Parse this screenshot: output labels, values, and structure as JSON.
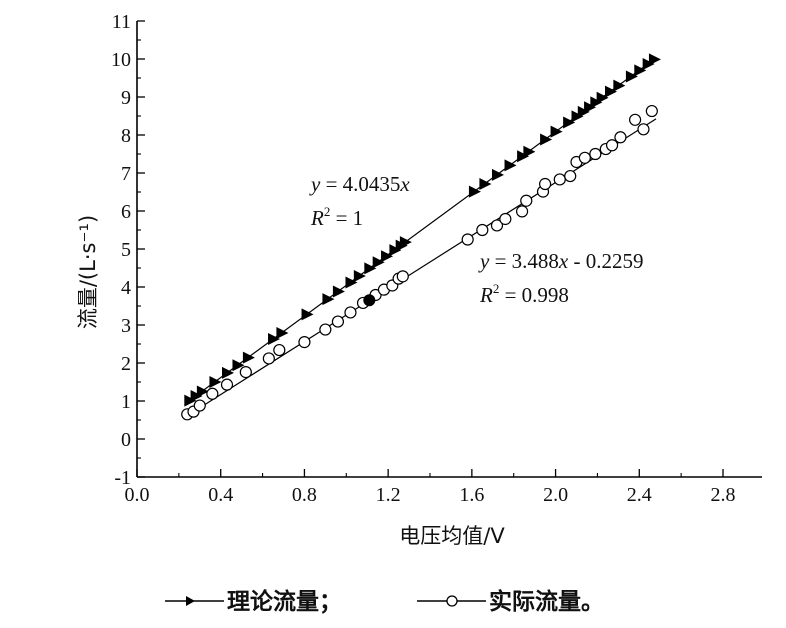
{
  "chart_data": {
    "type": "scatter",
    "xlabel": "电压均值/V",
    "ylabel": "流量/(L·s⁻¹)",
    "xlim": [
      0.0,
      3.0
    ],
    "ylim": [
      -1,
      11
    ],
    "x_ticks": [
      0.0,
      0.4,
      0.8,
      1.2,
      1.6,
      2.0,
      2.4,
      2.8
    ],
    "x_tick_labels": [
      "0.0",
      "0.4",
      "0.8",
      "1.2",
      "1.6",
      "2.0",
      "2.4",
      "2.8"
    ],
    "y_ticks": [
      -1,
      0,
      1,
      2,
      3,
      4,
      5,
      6,
      7,
      8,
      9,
      10,
      11
    ],
    "y_tick_labels": [
      "-1",
      "0",
      "1",
      "2",
      "3",
      "4",
      "5",
      "6",
      "7",
      "8",
      "9",
      "10",
      "11"
    ],
    "grid": false,
    "legend_text": "理论流量；",
    "legend_text_2": "实际流量。",
    "series": [
      {
        "name": "理论流量",
        "marker": "filled-triangle-right",
        "color": "#000000",
        "fit": {
          "slope": 4.0435,
          "intercept": 0,
          "x_range": [
            0.24,
            2.48
          ]
        },
        "equation": {
          "y_prefix": "y",
          "y_rest": " = 4.0435",
          "x_var": "x",
          "r2_prefix": "R",
          "r2_rest": " = 1"
        },
        "x": [
          0.25,
          0.28,
          0.31,
          0.37,
          0.43,
          0.48,
          0.53,
          0.65,
          0.69,
          0.81,
          0.91,
          0.96,
          1.02,
          1.06,
          1.11,
          1.15,
          1.19,
          1.23,
          1.26,
          1.28,
          1.61,
          1.66,
          1.72,
          1.78,
          1.84,
          1.87,
          1.95,
          2.0,
          2.06,
          2.1,
          2.13,
          2.16,
          2.19,
          2.22,
          2.26,
          2.3,
          2.36,
          2.4,
          2.44,
          2.47
        ],
        "y": [
          1.01,
          1.13,
          1.25,
          1.5,
          1.74,
          1.94,
          2.14,
          2.63,
          2.79,
          3.28,
          3.68,
          3.88,
          4.12,
          4.29,
          4.49,
          4.65,
          4.81,
          4.97,
          5.09,
          5.18,
          6.51,
          6.71,
          6.95,
          7.2,
          7.44,
          7.56,
          7.88,
          8.09,
          8.33,
          8.49,
          8.61,
          8.73,
          8.86,
          8.98,
          9.14,
          9.3,
          9.54,
          9.7,
          9.87,
          9.99
        ]
      },
      {
        "name": "实际流量",
        "marker": "open-circle",
        "color": "#000000",
        "fit": {
          "slope": 3.488,
          "intercept": -0.2259,
          "x_range": [
            0.24,
            2.48
          ]
        },
        "equation": {
          "y_prefix": "y",
          "y_rest": " = 3.488",
          "x_var": "x",
          "x_rest": " - 0.2259",
          "r2_prefix": "R",
          "r2_rest": " = 0.998"
        },
        "x": [
          0.24,
          0.27,
          0.3,
          0.36,
          0.43,
          0.52,
          0.63,
          0.68,
          0.8,
          0.9,
          0.96,
          1.02,
          1.08,
          1.14,
          1.18,
          1.22,
          1.25,
          1.27,
          1.58,
          1.65,
          1.72,
          1.76,
          1.84,
          1.86,
          1.94,
          1.95,
          2.02,
          2.07,
          2.1,
          2.14,
          2.19,
          2.24,
          2.27,
          2.31,
          2.38,
          2.42,
          2.46
        ],
        "y": [
          0.65,
          0.72,
          0.88,
          1.19,
          1.43,
          1.76,
          2.12,
          2.34,
          2.55,
          2.88,
          3.09,
          3.33,
          3.58,
          3.79,
          3.93,
          4.04,
          4.22,
          4.28,
          5.25,
          5.5,
          5.62,
          5.79,
          5.99,
          6.27,
          6.51,
          6.71,
          6.83,
          6.92,
          7.29,
          7.4,
          7.5,
          7.63,
          7.73,
          7.94,
          8.4,
          8.15,
          8.63
        ]
      }
    ],
    "highlight_point": {
      "x": 1.11,
      "y": 3.65
    }
  }
}
